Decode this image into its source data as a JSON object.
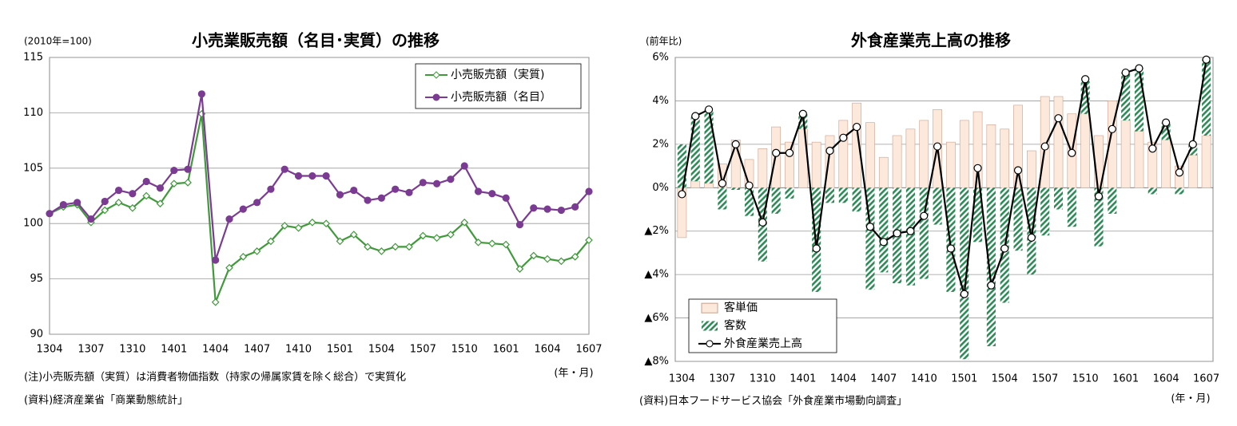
{
  "chart_data": [
    {
      "type": "line",
      "title": "小売業販売額（名目･実質）の推移",
      "y_label": "(2010年=100)",
      "x_label": "(年・月)",
      "note": "(注)小売販売額（実質）は消費者物価指数（持家の帰属家賃を除く総合）で実質化",
      "source": "(資料)経済産業省「商業動態統計」",
      "categories": [
        "1304",
        null,
        null,
        "1307",
        null,
        null,
        "1310",
        null,
        null,
        "1401",
        null,
        null,
        "1404",
        null,
        null,
        "1407",
        null,
        null,
        "1410",
        null,
        null,
        "1501",
        null,
        null,
        "1504",
        null,
        null,
        "1507",
        null,
        null,
        "1510",
        null,
        null,
        "1601",
        null,
        null,
        "1604",
        null,
        null,
        "1607"
      ],
      "series": [
        {
          "name": "小売販売額（実質)",
          "color": "#3f9a3a",
          "marker": "diamond",
          "values": [
            100.9,
            101.5,
            101.7,
            100.1,
            101.2,
            101.9,
            101.4,
            102.5,
            101.8,
            103.6,
            103.7,
            109.9,
            92.9,
            96.0,
            97.0,
            97.5,
            98.4,
            99.8,
            99.6,
            100.1,
            100.0,
            98.4,
            99.0,
            97.9,
            97.5,
            97.9,
            97.9,
            98.9,
            98.7,
            99.0,
            100.1,
            98.3,
            98.2,
            98.1,
            95.9,
            97.1,
            96.8,
            96.6,
            97.0,
            98.5
          ]
        },
        {
          "name": "小売販売額（名目）",
          "color": "#7b3b93",
          "marker": "circle",
          "values": [
            100.9,
            101.7,
            101.9,
            100.4,
            102.0,
            103.0,
            102.7,
            103.8,
            103.2,
            104.8,
            104.9,
            111.7,
            96.7,
            100.4,
            101.3,
            101.9,
            103.1,
            104.9,
            104.3,
            104.3,
            104.3,
            102.6,
            103.0,
            102.1,
            102.3,
            103.1,
            102.8,
            103.7,
            103.6,
            104.0,
            105.2,
            102.9,
            102.7,
            102.3,
            99.9,
            101.4,
            101.3,
            101.2,
            101.5,
            102.9
          ]
        }
      ],
      "ylim": [
        90,
        115
      ],
      "yticks": [
        90,
        95,
        100,
        105,
        110,
        115
      ],
      "grid": true,
      "legend": "top-right"
    },
    {
      "type": "bar",
      "stacked": true,
      "title": "外食産業売上高の推移",
      "y_label": "(前年比)",
      "x_label": "(年・月)",
      "source": "(資料)日本フードサービス協会「外食産業市場動向調査」",
      "categories": [
        "1304",
        null,
        null,
        "1307",
        null,
        null,
        "1310",
        null,
        null,
        "1401",
        null,
        null,
        "1404",
        null,
        null,
        "1407",
        null,
        null,
        "1410",
        null,
        null,
        "1501",
        null,
        null,
        "1504",
        null,
        null,
        "1507",
        null,
        null,
        "1510",
        null,
        null,
        "1601",
        null,
        null,
        "1604",
        null,
        null,
        "1607"
      ],
      "series": [
        {
          "name": "客単価",
          "color": "#fde9dc",
          "values": [
            -2.3,
            0.3,
            0.2,
            1.1,
            2.2,
            1.3,
            1.8,
            2.8,
            2.1,
            2.7,
            2.1,
            2.4,
            3.1,
            3.9,
            3.0,
            1.4,
            2.4,
            2.7,
            3.1,
            3.6,
            2.1,
            3.1,
            3.5,
            2.9,
            2.7,
            3.8,
            1.7,
            4.2,
            4.2,
            3.4,
            3.4,
            2.4,
            4.0,
            3.1,
            2.6,
            2.1,
            2.2,
            1.0,
            1.5,
            2.4
          ]
        },
        {
          "name": "客数",
          "color": "#2e8b57",
          "pattern": "hatch",
          "values": [
            2.0,
            3.0,
            3.4,
            -1.0,
            -0.1,
            -1.3,
            -3.4,
            -1.2,
            -0.5,
            0.7,
            -4.8,
            -0.7,
            -0.7,
            -1.1,
            -4.7,
            -3.9,
            -4.4,
            -4.5,
            -4.2,
            -1.7,
            -4.8,
            -7.9,
            -2.5,
            -7.3,
            -5.3,
            -2.9,
            -4.0,
            -2.2,
            -1.0,
            -1.8,
            1.5,
            -2.7,
            -1.2,
            2.2,
            2.9,
            -0.3,
            0.8,
            -0.3,
            0.5,
            3.5
          ]
        },
        {
          "name": "外食産業売上高",
          "color": "#000000",
          "type": "line",
          "marker": "circle",
          "values": [
            -0.3,
            3.3,
            3.6,
            0.2,
            2.0,
            0.1,
            -1.6,
            1.6,
            1.6,
            3.4,
            -2.8,
            1.7,
            2.3,
            2.8,
            -1.8,
            -2.5,
            -2.1,
            -2.0,
            -1.3,
            1.9,
            -2.8,
            -4.9,
            0.9,
            -4.5,
            -2.8,
            0.8,
            -2.3,
            1.9,
            3.2,
            1.6,
            5.0,
            -0.4,
            2.7,
            5.3,
            5.5,
            1.8,
            3.0,
            0.7,
            2.0,
            5.9
          ]
        }
      ],
      "ylim": [
        -8,
        6
      ],
      "yticks": [
        {
          "value": -8,
          "label": "▲8%"
        },
        {
          "value": -6,
          "label": "▲6%"
        },
        {
          "value": -4,
          "label": "▲4%"
        },
        {
          "value": -2,
          "label": "▲2%"
        },
        {
          "value": 0,
          "label": "0%"
        },
        {
          "value": 2,
          "label": "2%"
        },
        {
          "value": 4,
          "label": "4%"
        },
        {
          "value": 6,
          "label": "6%"
        }
      ],
      "grid": true,
      "legend": "bottom-left"
    }
  ]
}
